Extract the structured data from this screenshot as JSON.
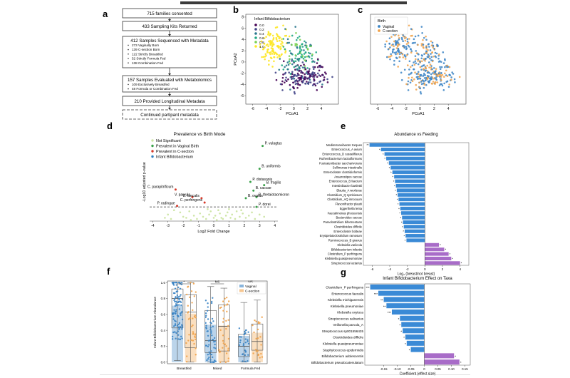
{
  "panel_a": {
    "letter": "a",
    "boxes": [
      {
        "title": "715 families consented",
        "bullets": []
      },
      {
        "title": "433 Sampling Kits Returned",
        "bullets": []
      },
      {
        "title": "412 Samples Sequenced with Metadata",
        "bullets": [
          "273 Vaginally Born",
          "139 C-section Born",
          "122 Strictly Breastfed",
          "52 Strictly Formula Fed",
          "138 Combination Fed"
        ]
      },
      {
        "title": "157 Samples Evaluated with Metabolomics",
        "bullets": [
          "109 Exclusively Breastfed",
          "48 Formula or Combination Fed"
        ]
      },
      {
        "title": "210 Provided Longitudinal Metadata",
        "bullets": []
      },
      {
        "title": "Continued partipant metadata",
        "bullets": []
      }
    ]
  },
  "chart_data": [
    {
      "panel": "b",
      "type": "scatter",
      "legend_title": "Infant Bifidobacterium",
      "legend_levels": [
        "0.0",
        "0.2",
        "0.4",
        "0.6",
        "0.8",
        "1.0"
      ],
      "colors": [
        "#440154",
        "#414487",
        "#2a788e",
        "#22a884",
        "#7ad151",
        "#fde725"
      ],
      "xlabel": "PCoA1",
      "ylabel": "PCoA2",
      "xlim": [
        -7,
        6.5
      ],
      "ylim": [
        -7.5,
        8.5
      ],
      "xticks": [
        -6,
        -4,
        -2,
        0,
        2,
        4
      ],
      "yticks": [
        -6,
        -4,
        -2,
        0,
        2,
        4,
        6,
        8
      ],
      "n_points": 412
    },
    {
      "panel": "c",
      "type": "scatter",
      "legend_title": "Birth",
      "series": [
        {
          "name": "Vaginal",
          "color": "#3b84c4",
          "n": 273
        },
        {
          "name": "C-section",
          "color": "#f0a24a",
          "n": 139
        }
      ],
      "xlabel": "PCoA1",
      "ylabel": "",
      "xlim": [
        -7,
        6.5
      ],
      "ylim": [
        -7.5,
        8.5
      ],
      "xticks": [
        -6,
        -4,
        -2,
        0,
        2,
        4
      ],
      "yticks": []
    },
    {
      "panel": "d",
      "type": "scatter",
      "title": "Prevalence vs Birth Mode",
      "xlabel": "Log2 Fold Change",
      "ylabel": "-Log10 adjusted p-value",
      "xlim": [
        -4.2,
        4.2
      ],
      "ylim": [
        0,
        7.2
      ],
      "xticks": [
        -4,
        -3,
        -2,
        -1,
        0,
        1,
        2,
        3,
        4
      ],
      "threshold": 1.3,
      "legend": [
        {
          "name": "Not Significant",
          "color": "#cfe6a8"
        },
        {
          "name": "Prevalent in Vaginal Birth",
          "color": "#3aa24a"
        },
        {
          "name": "Prevalent in C-section",
          "color": "#d63a2a"
        },
        {
          "name": "Infant Bifidobacterium",
          "color": "#2f7fc0"
        }
      ],
      "labeled_points": [
        {
          "label": "P. vulagtus",
          "x": 3.2,
          "y": 6.9,
          "cls": 1
        },
        {
          "label": "B. uniformis",
          "x": 3.0,
          "y": 4.8,
          "cls": 1
        },
        {
          "label": "P. distasonis",
          "x": 2.4,
          "y": 3.6,
          "cls": 1
        },
        {
          "label": "B. fragilis",
          "x": 3.3,
          "y": 3.3,
          "cls": 1
        },
        {
          "label": "B. caccae",
          "x": 2.6,
          "y": 2.8,
          "cls": 1
        },
        {
          "label": "B. thetaiotaomicron",
          "x": 2.8,
          "y": 2.2,
          "cls": 1
        },
        {
          "label": "B. ovatus",
          "x": 2.1,
          "y": 2.1,
          "cls": 1
        },
        {
          "label": "P. dorei",
          "x": 2.8,
          "y": 1.3,
          "cls": 1
        },
        {
          "label": "C. parapitrificum",
          "x": -2.5,
          "y": 2.9,
          "cls": 2
        },
        {
          "label": "V. parvula",
          "x": -1.4,
          "y": 2.2,
          "cls": 2
        },
        {
          "label": "E. faecalis",
          "x": -0.8,
          "y": 2.1,
          "cls": 2
        },
        {
          "label": "C. perfringens",
          "x": -0.6,
          "y": 1.7,
          "cls": 2
        },
        {
          "label": "P. radingae",
          "x": -2.4,
          "y": 1.4,
          "cls": 2
        }
      ],
      "other_points": [
        [
          -3.2,
          0.3
        ],
        [
          -3.0,
          0.6
        ],
        [
          -2.8,
          0.2
        ],
        [
          -2.2,
          0.8
        ],
        [
          -2.0,
          0.4
        ],
        [
          -1.8,
          0.3
        ],
        [
          -1.6,
          0.9
        ],
        [
          -1.3,
          0.5
        ],
        [
          -1.1,
          0.2
        ],
        [
          -0.9,
          0.7
        ],
        [
          -0.7,
          0.4
        ],
        [
          -0.5,
          0.2
        ],
        [
          -0.3,
          0.6
        ],
        [
          -0.2,
          0.9
        ],
        [
          0.0,
          0.3
        ],
        [
          0.1,
          0.5
        ],
        [
          0.2,
          0.1
        ],
        [
          0.4,
          0.7
        ],
        [
          0.5,
          0.3
        ],
        [
          0.6,
          0.2
        ],
        [
          0.8,
          0.5
        ],
        [
          0.9,
          0.8
        ],
        [
          1.1,
          0.3
        ],
        [
          1.2,
          0.6
        ],
        [
          1.4,
          0.2
        ],
        [
          1.5,
          0.9
        ],
        [
          1.7,
          0.4
        ],
        [
          1.9,
          0.7
        ],
        [
          2.1,
          0.3
        ],
        [
          2.3,
          0.5
        ],
        [
          2.5,
          0.8
        ],
        [
          2.7,
          0.2
        ],
        [
          3.0,
          0.6
        ],
        [
          3.3,
          0.4
        ],
        [
          -2.6,
          1.0
        ],
        [
          -0.4,
          1.1
        ],
        [
          0.3,
          1.0
        ],
        [
          1.0,
          1.1
        ],
        [
          1.8,
          1.0
        ],
        [
          -1.5,
          0.1
        ]
      ]
    },
    {
      "panel": "e",
      "type": "bar",
      "orientation": "horizontal",
      "title": "Abundance vs Feeding",
      "xlabel": "Log₂ (breast/not breast)",
      "xlim": [
        -7,
        5
      ],
      "xticks": [
        -6,
        -4,
        -2,
        0,
        2,
        4
      ],
      "categories": [
        "Mediterraneibacter torques",
        "Enterococcus_A avium",
        "Enterococcus_D casseliflavus",
        "Ruthenibacterium lactatiformans",
        "Fusicatenibacter saccharivorans",
        "Sellimonas intestinalis",
        "Enterocloster clostridioformis",
        "Anaerostipes caccae",
        "Enterococcus_B faecium",
        "Intestinibacter bartlettii",
        "Blautia_A wexlerae",
        "Clostridium_Q symbiosum",
        "Clostridium_AQ innocuum",
        "Flavonifractor plautii",
        "Eggerthella lenta",
        "Faecalimonas phoceensis",
        "Bacteroides caccae",
        "Paraclostridium bifermentans",
        "Clostridioides difficile",
        "Enterocloster bolteae",
        "Erysipelatoclostridium ramosum",
        "Ruminococcus_B gnavus",
        "Klebsiella variicola",
        "Bifidobacterium infantis",
        "Clostridium_P perfringens",
        "Klebsiella quasipneumoniae",
        "Streptococcus lactarius"
      ],
      "values": [
        -6.3,
        -5.0,
        -4.6,
        -4.4,
        -4.1,
        -3.9,
        -3.7,
        -3.5,
        -3.4,
        -3.3,
        -3.2,
        -3.1,
        -3.0,
        -2.9,
        -2.8,
        -2.7,
        -2.6,
        -2.5,
        -2.4,
        -2.3,
        -2.2,
        -2.1,
        1.6,
        2.2,
        2.7,
        3.0,
        4.0
      ],
      "sig": [
        "**",
        "*",
        "*",
        "*",
        "*",
        "*",
        "*",
        "*",
        "*",
        "*",
        "*",
        "*",
        "*",
        "*",
        "*",
        "*",
        "*",
        "*",
        "*",
        "*",
        "*",
        "*",
        "*",
        "*",
        "*",
        "*",
        "*"
      ]
    },
    {
      "panel": "f",
      "type": "box",
      "ylabel": "Infant Bifidobacterium Abundance",
      "ylim": [
        -0.02,
        1.02
      ],
      "yticks": [
        0.0,
        0.2,
        0.4,
        0.6,
        0.8,
        1.0
      ],
      "categories": [
        "Breastfed",
        "Mixed",
        "Formula Fed"
      ],
      "legend": [
        {
          "name": "Vaginal",
          "color": "#3b84c4"
        },
        {
          "name": "C-section",
          "color": "#f0a24a"
        }
      ],
      "significance": [
        "*",
        "NS",
        "NS"
      ],
      "bar_means": {
        "Vaginal": [
          0.71,
          0.47,
          0.33
        ],
        "C-section": [
          0.61,
          0.46,
          0.37
        ]
      },
      "boxes": {
        "Vaginal": [
          [
            0.02,
            0.43,
            0.8,
            0.92,
            1.0
          ],
          [
            0.0,
            0.12,
            0.27,
            0.65,
            0.95
          ],
          [
            0.0,
            0.07,
            0.2,
            0.35,
            0.75
          ]
        ],
        "C-section": [
          [
            0.0,
            0.18,
            0.63,
            0.85,
            1.0
          ],
          [
            0.0,
            0.14,
            0.45,
            0.72,
            0.93
          ],
          [
            0.0,
            0.15,
            0.26,
            0.48,
            0.78
          ]
        ]
      }
    },
    {
      "panel": "g",
      "type": "bar",
      "orientation": "horizontal",
      "title": "Infant Bifidobacterium Effect on Taxa",
      "xlabel": "Coefficient (effect size)",
      "xlim": [
        -0.22,
        0.17
      ],
      "xticks": [
        -0.15,
        -0.1,
        -0.05,
        0.0,
        0.05,
        0.1,
        0.15
      ],
      "categories": [
        "Clostridium_P perfringens",
        "Enterococcus faecalis",
        "Klebsiella michiganensis",
        "Klebsiella pneumoniae",
        "Klebsiella oxytoca",
        "Streptococcus salivarius",
        "Veillonella parvula_A",
        "Streptococcus sp001556435",
        "Clostridioides difficile",
        "Klebsiella quasipneumoniae",
        "Staphylococcus epidermidis",
        "Bifidobacterium adolescentis",
        "Bifidobacterium pseudocatenulatum"
      ],
      "values": [
        -0.2,
        -0.17,
        -0.15,
        -0.14,
        -0.12,
        -0.09,
        -0.085,
        -0.08,
        -0.07,
        -0.065,
        -0.05,
        0.11,
        0.13
      ],
      "sig": [
        "***",
        "***",
        "**",
        "**",
        "***",
        "*",
        "*",
        "*",
        "*",
        "*",
        "*",
        "*",
        "*"
      ]
    }
  ]
}
